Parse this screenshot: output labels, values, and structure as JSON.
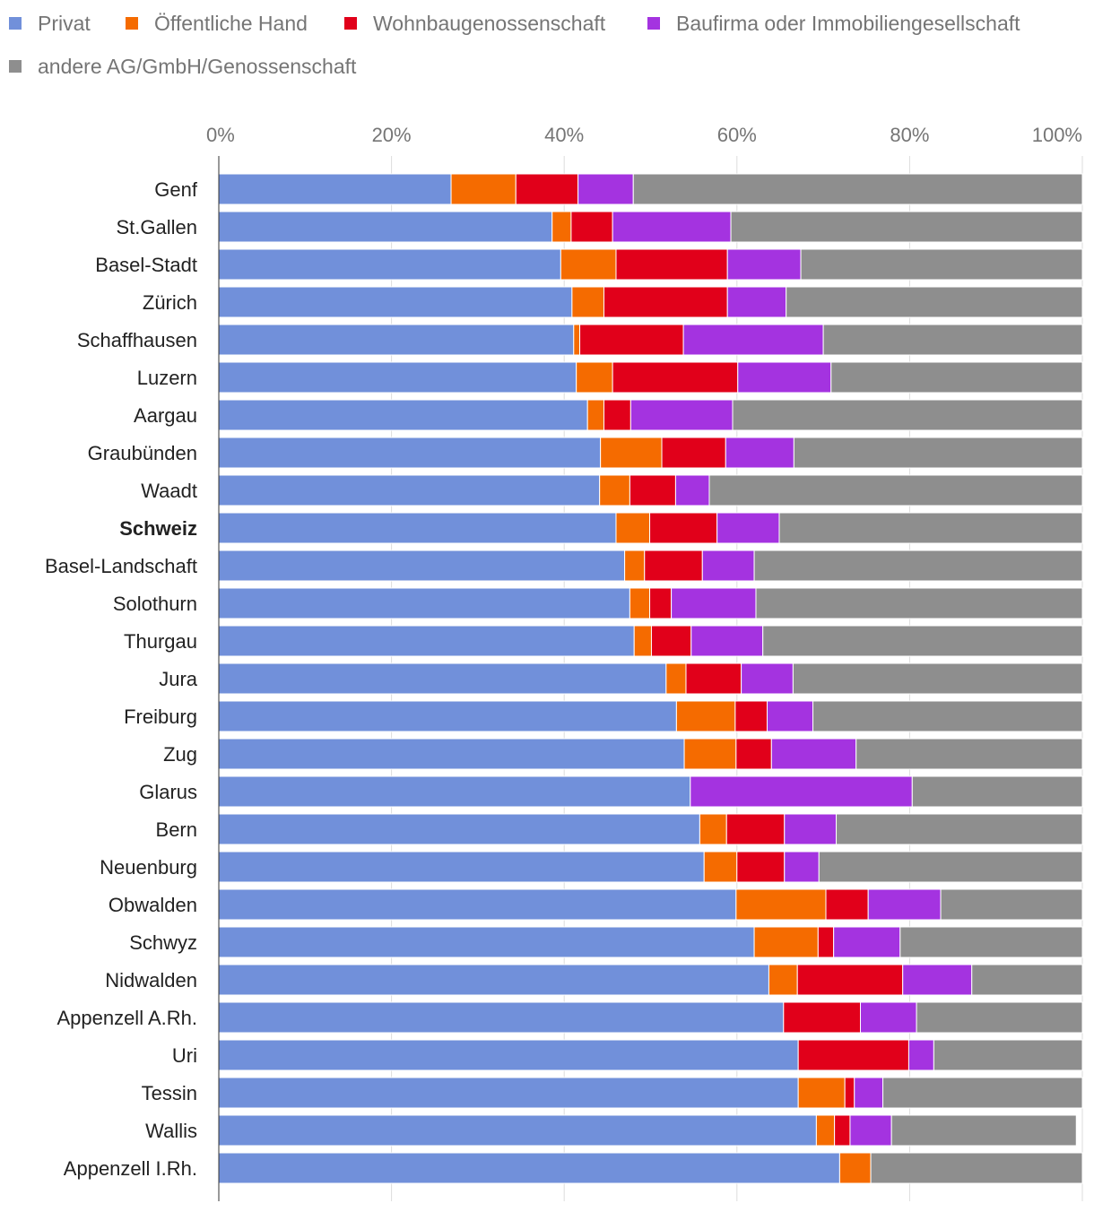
{
  "chart_data": {
    "type": "bar",
    "orientation": "horizontal",
    "stacked": true,
    "normalized": true,
    "title": "",
    "xlabel": "",
    "ylabel": "",
    "xlim": [
      0,
      100
    ],
    "ticks": [
      "0%",
      "20%",
      "40%",
      "60%",
      "80%",
      "100%"
    ],
    "grid": true,
    "legend_position": "top",
    "highlight_category": "Schweiz",
    "categories": [
      "Genf",
      "St.Gallen",
      "Basel-Stadt",
      "Zürich",
      "Schaffhausen",
      "Luzern",
      "Aargau",
      "Graubünden",
      "Waadt",
      "Schweiz",
      "Basel-Landschaft",
      "Solothurn",
      "Thurgau",
      "Jura",
      "Freiburg",
      "Zug",
      "Glarus",
      "Bern",
      "Neuenburg",
      "Obwalden",
      "Schwyz",
      "Nidwalden",
      "Appenzell A.Rh.",
      "Uri",
      "Tessin",
      "Wallis",
      "Appenzell I.Rh."
    ],
    "series": [
      {
        "name": "Privat",
        "color": "#7190da",
        "values": [
          26.9,
          38.6,
          39.6,
          40.9,
          41.1,
          41.4,
          42.7,
          44.2,
          44.1,
          46.0,
          47.0,
          47.6,
          48.1,
          51.8,
          53.0,
          53.9,
          54.6,
          55.7,
          56.2,
          59.9,
          62.0,
          63.7,
          65.4,
          67.1,
          67.1,
          69.2,
          71.9
        ]
      },
      {
        "name": "Öffentliche Hand",
        "color": "#f56b00",
        "values": [
          7.5,
          2.2,
          6.4,
          3.7,
          0.7,
          4.2,
          1.9,
          7.1,
          3.5,
          3.9,
          2.3,
          2.3,
          2.0,
          2.3,
          6.8,
          6.0,
          0.0,
          3.1,
          3.8,
          10.4,
          7.4,
          3.3,
          0.0,
          0.0,
          5.4,
          2.1,
          3.6
        ]
      },
      {
        "name": "Wohnbaugenossenschaft",
        "color": "#e1001a",
        "values": [
          7.2,
          4.8,
          12.9,
          14.3,
          12.0,
          14.5,
          3.1,
          7.4,
          5.3,
          7.8,
          6.7,
          2.5,
          4.6,
          6.4,
          3.7,
          4.1,
          0.0,
          6.7,
          5.5,
          4.9,
          1.8,
          12.2,
          8.9,
          12.8,
          1.1,
          1.8,
          0.0
        ]
      },
      {
        "name": "Baufirma oder Immobiliengesellschaft",
        "color": "#a433e0",
        "values": [
          6.4,
          13.7,
          8.5,
          6.8,
          16.2,
          10.8,
          11.8,
          7.9,
          3.9,
          7.2,
          6.0,
          9.8,
          8.3,
          6.0,
          5.3,
          9.8,
          25.7,
          6.0,
          4.0,
          8.4,
          7.7,
          8.0,
          6.5,
          2.9,
          3.3,
          4.8,
          0.0
        ]
      },
      {
        "name": "andere AG/GmbH/Genossenschaft",
        "color": "#8e8e8e",
        "values": [
          52.0,
          40.7,
          32.6,
          34.3,
          30.0,
          29.1,
          40.5,
          33.4,
          43.2,
          35.1,
          38.0,
          37.8,
          37.0,
          33.5,
          31.2,
          26.2,
          19.7,
          28.5,
          30.5,
          16.4,
          21.1,
          12.8,
          19.2,
          17.2,
          23.1,
          21.4,
          24.5
        ]
      }
    ]
  }
}
